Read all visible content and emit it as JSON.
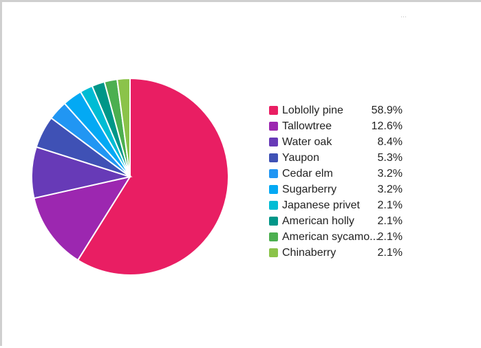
{
  "toolbar": {
    "menu_icon": "more-dots-icon",
    "menu_glyph": "…"
  },
  "chart_data": {
    "type": "pie",
    "title": "",
    "legend_position": "right",
    "slices": [
      {
        "label": "Loblolly pine",
        "value": 58.9,
        "display": "58.9%",
        "color": "#e91e63"
      },
      {
        "label": "Tallowtree",
        "value": 12.6,
        "display": "12.6%",
        "color": "#9c27b0"
      },
      {
        "label": "Water oak",
        "value": 8.4,
        "display": "8.4%",
        "color": "#673ab7"
      },
      {
        "label": "Yaupon",
        "value": 5.3,
        "display": "5.3%",
        "color": "#3f51b5"
      },
      {
        "label": "Cedar elm",
        "value": 3.2,
        "display": "3.2%",
        "color": "#2196f3"
      },
      {
        "label": "Sugarberry",
        "value": 3.2,
        "display": "3.2%",
        "color": "#03a9f4"
      },
      {
        "label": "Japanese privet",
        "value": 2.1,
        "display": "2.1%",
        "color": "#00bcd4"
      },
      {
        "label": "American holly",
        "value": 2.1,
        "display": "2.1%",
        "color": "#009688"
      },
      {
        "label": "American sycamo...",
        "value": 2.1,
        "display": "2.1%",
        "color": "#4caf50"
      },
      {
        "label": "Chinaberry",
        "value": 2.1,
        "display": "2.1%",
        "color": "#8bc34a"
      }
    ]
  }
}
